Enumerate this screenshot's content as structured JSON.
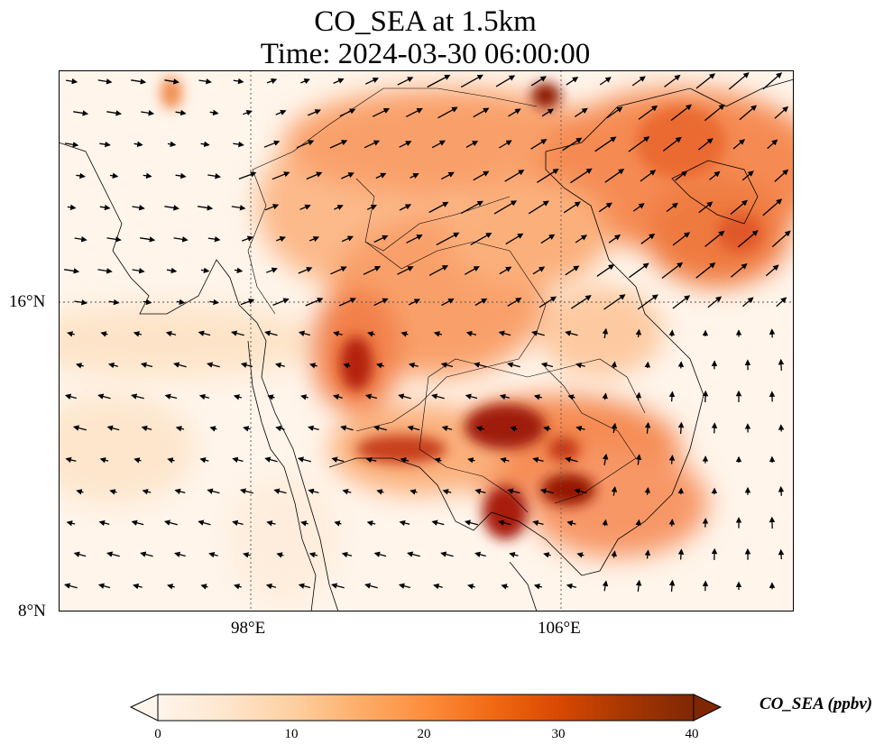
{
  "title": {
    "line1": "CO_SEA at 1.5km",
    "line2": "Time: 2024-03-30 06:00:00"
  },
  "map": {
    "lat_range": [
      8,
      22
    ],
    "lon_range": [
      93,
      112
    ],
    "gridlines_lat": [
      16
    ],
    "gridlines_lon": [
      98,
      106
    ],
    "lat_labels": [
      "16°N",
      "8°N"
    ],
    "lon_labels": [
      "98°E",
      "106°E"
    ]
  },
  "colorbar": {
    "label": "CO_SEA (ppbv)",
    "ticks": [
      "0",
      "10",
      "20",
      "30",
      "40"
    ],
    "min": 0,
    "max": 40,
    "extend": "both",
    "colormap": [
      "#fff5eb",
      "#fee6ce",
      "#fdd0a2",
      "#fdae6b",
      "#fd8d3c",
      "#f16913",
      "#d94801",
      "#a63603",
      "#7f2704"
    ]
  }
}
